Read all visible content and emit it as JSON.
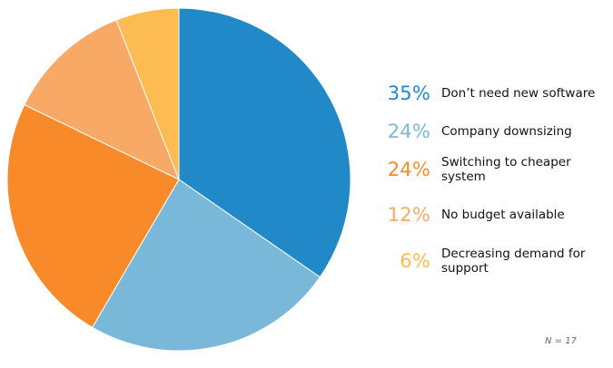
{
  "chart_data": {
    "type": "pie",
    "slices": [
      {
        "label": "Don’t need new software",
        "value": 35,
        "display": "35%",
        "color": "#2289c9"
      },
      {
        "label": "Company downsizing",
        "value": 24,
        "display": "24%",
        "color": "#7ab8d9"
      },
      {
        "label": "Switching to cheaper system",
        "value": 24,
        "display": "24%",
        "color": "#f98a29"
      },
      {
        "label": "No budget available",
        "value": 12,
        "display": "12%",
        "color": "#f9a966"
      },
      {
        "label": "Decreasing demand for support",
        "value": 6,
        "display": "6%",
        "color": "#fcbc52"
      }
    ],
    "note": "N = 17",
    "legend_position": "right"
  }
}
